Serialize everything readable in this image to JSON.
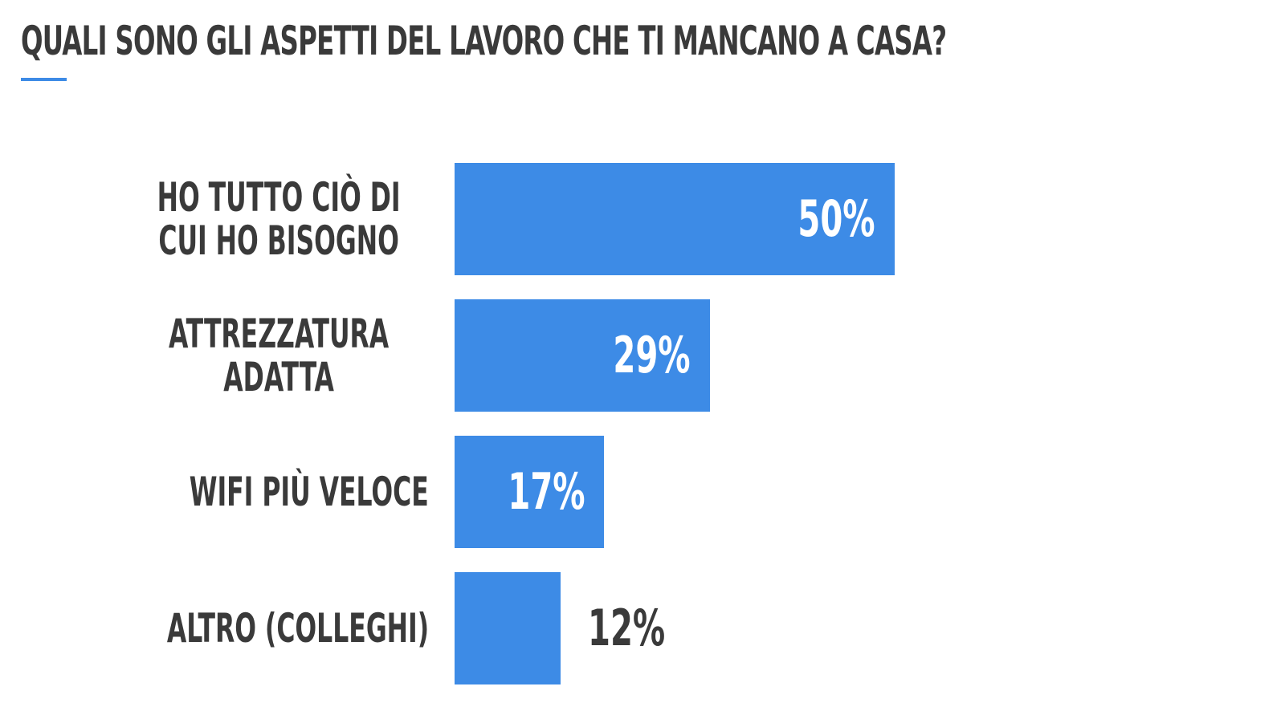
{
  "chart_data": {
    "type": "bar",
    "orientation": "horizontal",
    "title": "QUALI SONO GLI ASPETTI DEL LAVORO CHE TI MANCANO A CASA?",
    "categories": [
      "HO TUTTO CIÒ DI CUI HO BISOGNO",
      "ATTREZZATURA ADATTA",
      "WIFI PIÙ VELOCE",
      "ALTRO (COLLEGHI)"
    ],
    "values": [
      50,
      29,
      17,
      12
    ],
    "value_labels": [
      "50%",
      "29%",
      "17%",
      "12%"
    ],
    "color": "#3d8be6"
  }
}
